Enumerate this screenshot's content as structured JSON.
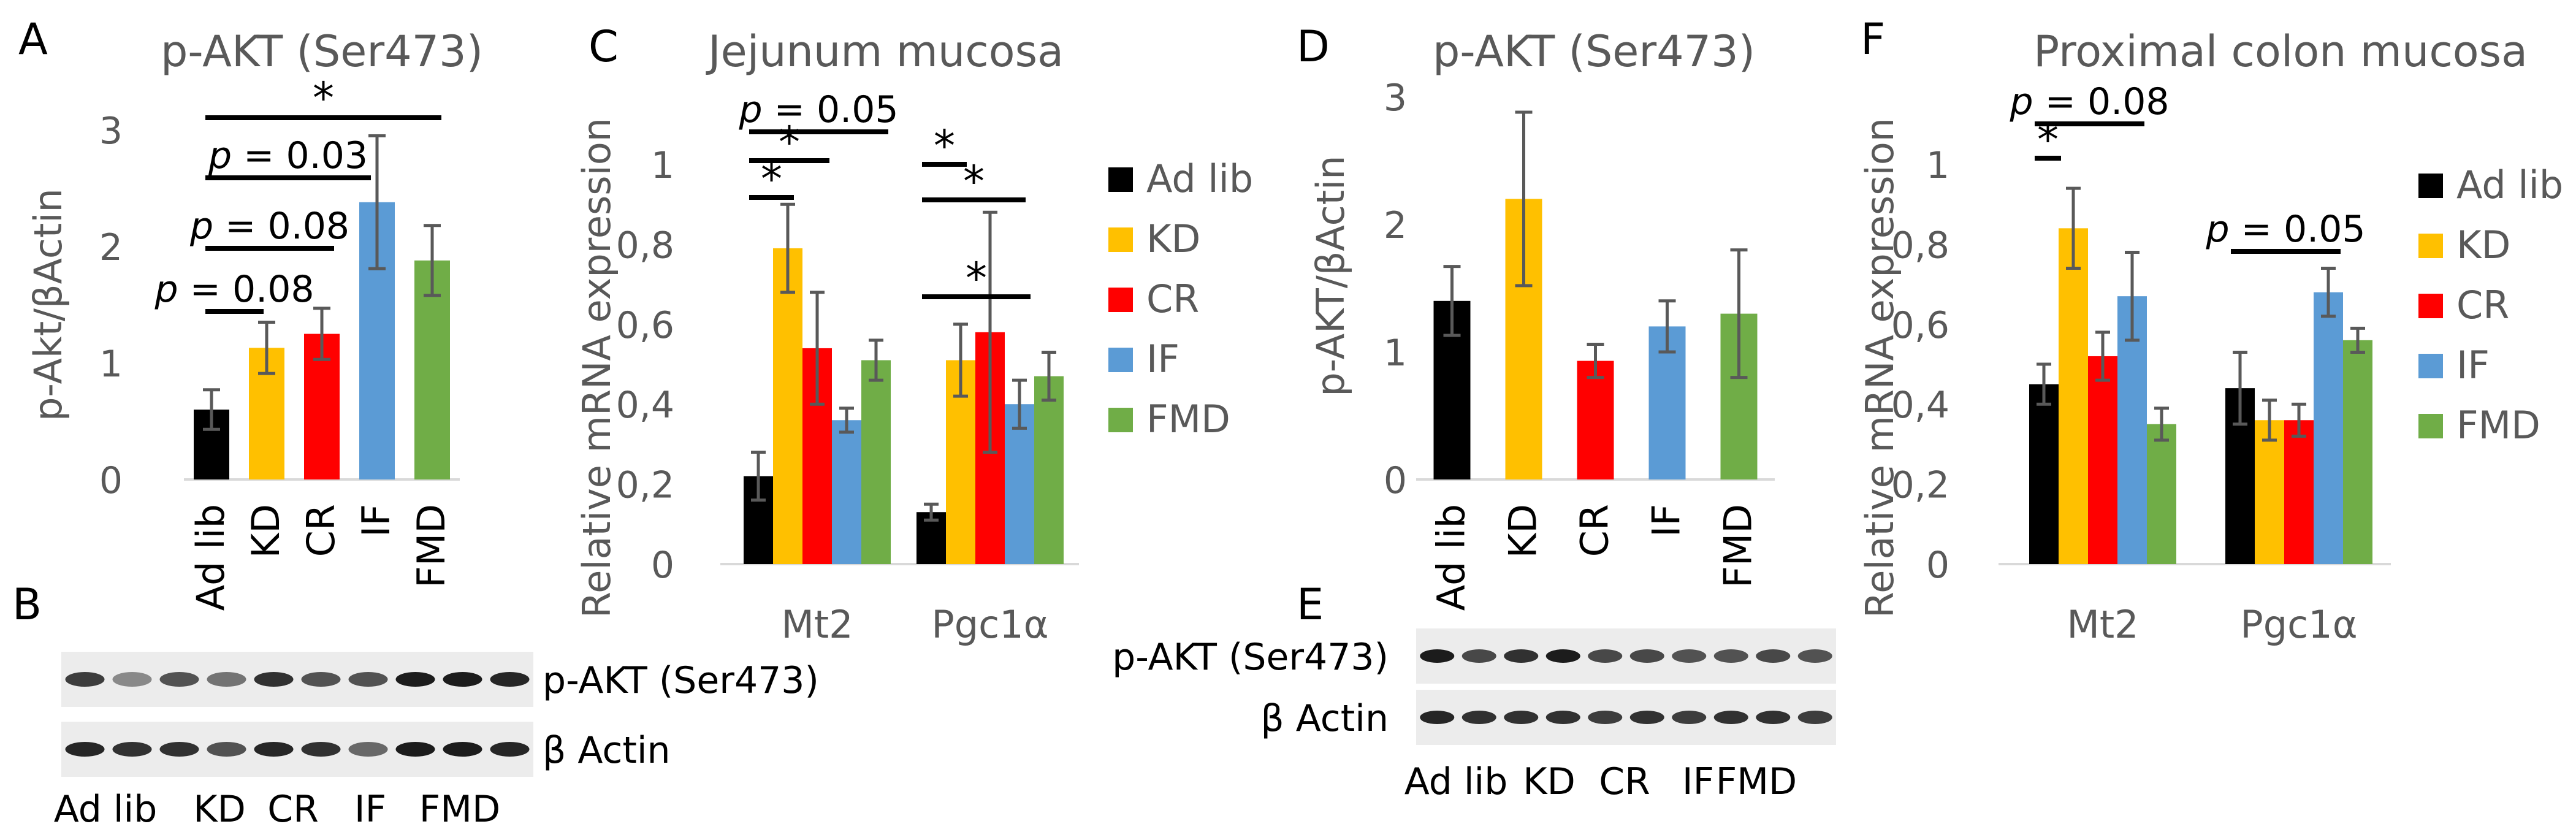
{
  "figure": {
    "panel_letters": {
      "A": "A",
      "B": "B",
      "C": "C",
      "D": "D",
      "E": "E",
      "F": "F"
    },
    "group_colors": {
      "Ad lib": "#000000",
      "KD": "#ffc000",
      "CR": "#ff0000",
      "IF": "#5b9bd5",
      "FMD": "#70ad47"
    },
    "error_bar_color": "#595959",
    "significance_star": "*"
  },
  "blot_B": {
    "bands": [
      "p-AKT (Ser473)",
      "β Actin"
    ],
    "lanes": [
      "Ad lib",
      "KD",
      "CR",
      "IF",
      "FMD"
    ]
  },
  "blot_E": {
    "bands": [
      "p-AKT (Ser473)",
      "β Actin"
    ],
    "lanes": [
      "Ad lib",
      "KD",
      "CR",
      "IF",
      "FMD"
    ]
  },
  "chart_data": [
    {
      "panel": "A",
      "type": "bar",
      "title": "p-AKT (Ser473)",
      "xlabel": "",
      "ylabel": "p-Akt/βActin",
      "ylim": [
        0,
        3
      ],
      "yticks": [
        "0",
        "1",
        "2",
        "3"
      ],
      "categories": [
        "Ad lib",
        "KD",
        "CR",
        "IF",
        "FMD"
      ],
      "values": [
        0.6,
        1.13,
        1.25,
        2.38,
        1.88
      ],
      "errors": [
        0.17,
        0.22,
        0.22,
        0.57,
        0.3
      ],
      "significance": [
        {
          "from": "Ad lib",
          "to": "KD",
          "label": "p = 0.08"
        },
        {
          "from": "Ad lib",
          "to": "CR",
          "label": "p = 0.08"
        },
        {
          "from": "Ad lib",
          "to": "IF",
          "label": "p = 0.03"
        },
        {
          "from": "Ad lib",
          "to": "FMD",
          "label": "*"
        }
      ]
    },
    {
      "panel": "C",
      "type": "bar",
      "title": "Jejunum mucosa",
      "xlabel": "",
      "ylabel": "Relative mRNA expression",
      "ylim": [
        0,
        1
      ],
      "yticks": [
        "0",
        "0,2",
        "0,4",
        "0,6",
        "0,8",
        "1"
      ],
      "categories": [
        "Mt2",
        "Pgc1α"
      ],
      "legend": [
        "Ad lib",
        "KD",
        "CR",
        "IF",
        "FMD"
      ],
      "series": [
        {
          "name": "Ad lib",
          "values": [
            0.22,
            0.13
          ],
          "errors": [
            0.06,
            0.02
          ]
        },
        {
          "name": "KD",
          "values": [
            0.79,
            0.51
          ],
          "errors": [
            0.11,
            0.09
          ]
        },
        {
          "name": "CR",
          "values": [
            0.54,
            0.58
          ],
          "errors": [
            0.14,
            0.3
          ]
        },
        {
          "name": "IF",
          "values": [
            0.36,
            0.4
          ],
          "errors": [
            0.03,
            0.06
          ]
        },
        {
          "name": "FMD",
          "values": [
            0.51,
            0.47
          ],
          "errors": [
            0.05,
            0.06
          ]
        }
      ],
      "significance": [
        {
          "category": "Mt2",
          "from": "Ad lib",
          "to": "KD",
          "label": "*"
        },
        {
          "category": "Mt2",
          "from": "Ad lib",
          "to": "CR",
          "label": "*"
        },
        {
          "category": "Mt2",
          "from": "Ad lib",
          "to": "FMD",
          "label": "p = 0.05"
        },
        {
          "category": "Pgc1α",
          "from": "Ad lib",
          "to": "KD",
          "label": "*"
        },
        {
          "category": "Pgc1α",
          "from": "Ad lib",
          "to": "IF",
          "label": "*"
        },
        {
          "category": "Pgc1α",
          "from": "Ad lib",
          "to": "FMD",
          "label": "*"
        }
      ]
    },
    {
      "panel": "D",
      "type": "bar",
      "title": "p-AKT (Ser473)",
      "xlabel": "",
      "ylabel": "p-AKT/βActin",
      "ylim": [
        0,
        3
      ],
      "yticks": [
        "0",
        "1",
        "2",
        "3"
      ],
      "categories": [
        "Ad lib",
        "KD",
        "CR",
        "IF",
        "FMD"
      ],
      "values": [
        1.4,
        2.2,
        0.93,
        1.2,
        1.3
      ],
      "errors": [
        0.27,
        0.68,
        0.13,
        0.2,
        0.5
      ],
      "significance": []
    },
    {
      "panel": "F",
      "type": "bar",
      "title": "Proximal colon mucosa",
      "xlabel": "",
      "ylabel": "Relative mRNA expression",
      "ylim": [
        0,
        1
      ],
      "yticks": [
        "0",
        "0,2",
        "0,4",
        "0,6",
        "0,8",
        "1"
      ],
      "categories": [
        "Mt2",
        "Pgc1α"
      ],
      "legend": [
        "Ad lib",
        "KD",
        "CR",
        "IF",
        "FMD"
      ],
      "series": [
        {
          "name": "Ad lib",
          "values": [
            0.45,
            0.44
          ],
          "errors": [
            0.05,
            0.09
          ]
        },
        {
          "name": "KD",
          "values": [
            0.84,
            0.36
          ],
          "errors": [
            0.1,
            0.05
          ]
        },
        {
          "name": "CR",
          "values": [
            0.52,
            0.36
          ],
          "errors": [
            0.06,
            0.04
          ]
        },
        {
          "name": "IF",
          "values": [
            0.67,
            0.68
          ],
          "errors": [
            0.11,
            0.06
          ]
        },
        {
          "name": "FMD",
          "values": [
            0.35,
            0.56
          ],
          "errors": [
            0.04,
            0.03
          ]
        }
      ],
      "significance": [
        {
          "category": "Mt2",
          "from": "Ad lib",
          "to": "KD",
          "label": "*"
        },
        {
          "category": "Mt2",
          "from": "Ad lib",
          "to": "IF",
          "label": "p = 0.08"
        },
        {
          "category": "Pgc1α",
          "from": "Ad lib",
          "to": "IF",
          "label": "p = 0.05"
        }
      ]
    }
  ]
}
